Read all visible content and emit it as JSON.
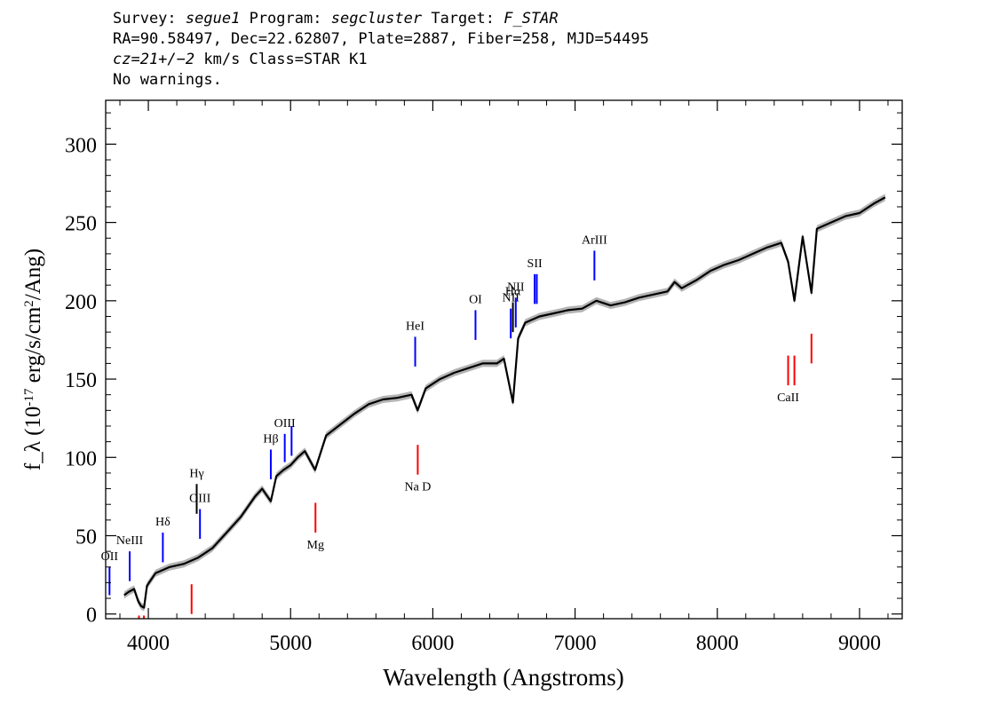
{
  "header": {
    "survey_label": "Survey:",
    "survey": "segue1",
    "program_label": "Program:",
    "program": "segcluster",
    "target_label": "Target:",
    "target": "F_STAR",
    "line2": "RA=90.58497, Dec=22.62807, Plate=2887, Fiber=258, MJD=54495",
    "cz": "cz=21+/−2",
    "line3_rest": " km/s Class=STAR K1",
    "line4": "No warnings."
  },
  "chart_data": {
    "type": "line",
    "xlabel": "Wavelength (Angstroms)",
    "ylabel": "f_λ (10^-17 erg/s/cm^2/Ang)",
    "xlim": [
      3700,
      9300
    ],
    "ylim": [
      -3,
      328
    ],
    "x_ticks": [
      4000,
      5000,
      6000,
      7000,
      8000,
      9000
    ],
    "y_ticks": [
      0,
      50,
      100,
      150,
      200,
      250,
      300
    ],
    "series": [
      {
        "color": "#000000",
        "error_band_color": "#b4b4b4",
        "x": [
          3830,
          3860,
          3900,
          3930,
          3950,
          3970,
          3990,
          4050,
          4100,
          4150,
          4250,
          4300,
          4350,
          4400,
          4450,
          4550,
          4650,
          4750,
          4800,
          4861,
          4900,
          4950,
          5000,
          5050,
          5100,
          5172,
          5250,
          5350,
          5450,
          5550,
          5650,
          5750,
          5850,
          5893,
          5950,
          6050,
          6150,
          6250,
          6350,
          6450,
          6500,
          6563,
          6600,
          6650,
          6750,
          6850,
          6950,
          7050,
          7150,
          7250,
          7350,
          7450,
          7550,
          7650,
          7700,
          7750,
          7850,
          7950,
          8050,
          8150,
          8250,
          8350,
          8450,
          8498,
          8542,
          8600,
          8662,
          8700,
          8800,
          8900,
          9000,
          9100,
          9180
        ],
        "y": [
          12,
          14,
          16,
          8,
          5,
          4,
          18,
          26,
          28,
          30,
          32,
          34,
          36,
          39,
          42,
          52,
          62,
          75,
          80,
          72,
          88,
          92,
          95,
          100,
          104,
          92,
          114,
          121,
          128,
          134,
          137,
          138,
          140,
          130,
          144,
          150,
          154,
          157,
          160,
          160,
          163,
          135,
          176,
          186,
          190,
          192,
          194,
          195,
          200,
          197,
          199,
          202,
          204,
          206,
          212,
          208,
          213,
          219,
          223,
          226,
          230,
          234,
          237,
          225,
          200,
          241,
          205,
          246,
          250,
          254,
          256,
          262,
          266
        ]
      }
    ],
    "lines": [
      {
        "label": "OII",
        "x": 3727,
        "color": "#0000ff",
        "y0": 12,
        "y1": 30
      },
      {
        "label": "NeIII",
        "x": 3869,
        "color": "#0000ff",
        "y0": 21,
        "y1": 40
      },
      {
        "label": "Hδ",
        "x": 4102,
        "color": "#0000ff",
        "y0": 33,
        "y1": 52
      },
      {
        "label": "Hγ",
        "x": 4340,
        "color": "#000000",
        "y0": 64,
        "y1": 83
      },
      {
        "label": "OIII",
        "x": 4363,
        "color": "#0000ff",
        "y0": 48,
        "y1": 67
      },
      {
        "label": "Hβ",
        "x": 4861,
        "color": "#0000ff",
        "y0": 86,
        "y1": 105
      },
      {
        "label": "OIII",
        "x": 4959,
        "color": "#0000ff",
        "y0": 97,
        "y1": 115
      },
      {
        "label": "",
        "x": 5007,
        "color": "#0000ff",
        "y0": 101,
        "y1": 120
      },
      {
        "label": "HeI",
        "x": 5876,
        "color": "#0000ff",
        "y0": 158,
        "y1": 177
      },
      {
        "label": "OI",
        "x": 6300,
        "color": "#0000ff",
        "y0": 175,
        "y1": 194
      },
      {
        "label": "NII",
        "x": 6548,
        "color": "#0000ff",
        "y0": 176,
        "y1": 195
      },
      {
        "label": "Hα",
        "x": 6563,
        "color": "#000000",
        "y0": 180,
        "y1": 199
      },
      {
        "label": "NII",
        "x": 6583,
        "color": "#0000ff",
        "y0": 183,
        "y1": 202
      },
      {
        "label": "SII",
        "x": 6716,
        "color": "#0000ff",
        "y0": 198,
        "y1": 217
      },
      {
        "label": "",
        "x": 6731,
        "color": "#0000ff",
        "y0": 198,
        "y1": 217
      },
      {
        "label": "ArIII",
        "x": 7136,
        "color": "#0000ff",
        "y0": 213,
        "y1": 232
      },
      {
        "label": "",
        "x": 3934,
        "color": "#ff0000",
        "y0": -3,
        "y1": -1
      },
      {
        "label": "",
        "x": 3969,
        "color": "#ff0000",
        "y0": -3,
        "y1": -1
      },
      {
        "label": "",
        "x": 4304,
        "color": "#ff0000",
        "y0": 0,
        "y1": 19
      },
      {
        "label": "Mg",
        "x": 5175,
        "color": "#ff0000",
        "y0": 52,
        "y1": 71
      },
      {
        "label": "Na D",
        "x": 5894,
        "color": "#ff0000",
        "y0": 89,
        "y1": 108
      },
      {
        "label": "CaII",
        "x": 8498,
        "color": "#ff0000",
        "y0": 146,
        "y1": 165
      },
      {
        "label": "",
        "x": 8542,
        "color": "#ff0000",
        "y0": 146,
        "y1": 165
      },
      {
        "label": "",
        "x": 8662,
        "color": "#ff0000",
        "y0": 160,
        "y1": 179
      }
    ]
  }
}
